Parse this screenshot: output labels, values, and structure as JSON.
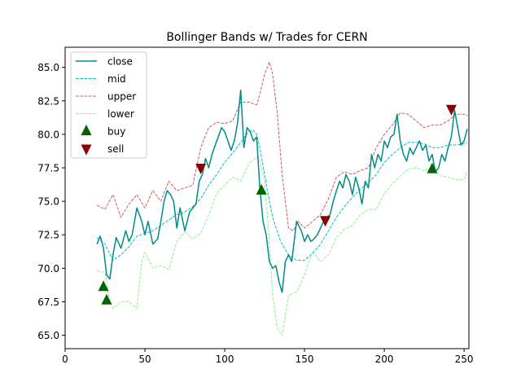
{
  "chart_data": {
    "type": "line",
    "title": "Bollinger Bands w/ Trades for CERN",
    "xlabel": "",
    "ylabel": "",
    "xlim": [
      0,
      253
    ],
    "ylim": [
      64.0,
      86.5
    ],
    "xticks": [
      0,
      50,
      100,
      150,
      200,
      250
    ],
    "yticks": [
      65.0,
      67.5,
      70.0,
      72.5,
      75.0,
      77.5,
      80.0,
      82.5,
      85.0
    ],
    "ytick_labels": [
      "65.0",
      "67.5",
      "70.0",
      "72.5",
      "75.0",
      "77.5",
      "80.0",
      "82.5",
      "85.0"
    ],
    "grid": false,
    "legend_position": "top-left",
    "series": [
      {
        "name": "close",
        "color": "#008b8b",
        "style": "solid",
        "x": [
          20,
          22,
          24,
          26,
          28,
          30,
          32,
          35,
          38,
          40,
          42,
          45,
          48,
          50,
          52,
          55,
          58,
          60,
          62,
          64,
          66,
          68,
          70,
          72,
          75,
          78,
          80,
          82,
          84,
          86,
          88,
          90,
          92,
          95,
          98,
          100,
          102,
          104,
          106,
          108,
          110,
          112,
          114,
          116,
          118,
          120,
          122,
          124,
          126,
          128,
          130,
          132,
          134,
          136,
          138,
          140,
          142,
          145,
          148,
          150,
          152,
          154,
          156,
          158,
          160,
          162,
          164,
          166,
          168,
          170,
          172,
          174,
          176,
          178,
          180,
          182,
          184,
          186,
          188,
          190,
          192,
          194,
          196,
          198,
          200,
          202,
          204,
          206,
          208,
          210,
          212,
          214,
          216,
          218,
          220,
          222,
          224,
          226,
          228,
          230,
          232,
          234,
          236,
          238,
          240,
          242,
          244,
          246,
          248,
          250,
          252
        ],
        "y": [
          71.8,
          72.4,
          71.5,
          69.5,
          69.2,
          71.0,
          72.3,
          71.5,
          72.8,
          72.0,
          72.5,
          74.5,
          73.5,
          72.5,
          73.5,
          71.8,
          72.2,
          73.5,
          75.0,
          75.8,
          75.5,
          75.0,
          73.0,
          74.5,
          72.8,
          74.2,
          74.5,
          74.8,
          76.5,
          77.0,
          78.2,
          77.5,
          78.5,
          79.5,
          80.5,
          80.2,
          79.5,
          78.8,
          79.5,
          80.8,
          83.3,
          79.0,
          80.5,
          80.2,
          79.5,
          79.8,
          76.0,
          73.5,
          72.5,
          70.5,
          70.0,
          70.2,
          69.0,
          68.2,
          70.5,
          71.0,
          70.5,
          73.5,
          72.8,
          72.0,
          72.5,
          72.0,
          72.2,
          72.5,
          73.0,
          73.5,
          73.8,
          74.0,
          75.0,
          75.8,
          76.5,
          76.0,
          77.0,
          76.5,
          75.5,
          76.8,
          76.0,
          74.8,
          76.5,
          76.0,
          78.5,
          77.5,
          78.5,
          78.0,
          79.5,
          79.0,
          79.8,
          80.0,
          81.5,
          79.5,
          78.5,
          78.0,
          79.0,
          78.5,
          79.0,
          79.5,
          78.8,
          79.2,
          78.0,
          78.5,
          77.2,
          77.5,
          78.5,
          78.0,
          79.0,
          79.8,
          81.8,
          80.5,
          79.2,
          79.5,
          80.4
        ]
      },
      {
        "name": "mid",
        "color": "#00bfbf",
        "style": "dashed",
        "x": [
          20,
          25,
          30,
          35,
          40,
          45,
          50,
          55,
          60,
          65,
          70,
          75,
          80,
          85,
          90,
          95,
          100,
          105,
          110,
          115,
          118,
          120,
          122,
          125,
          128,
          130,
          135,
          140,
          145,
          150,
          155,
          160,
          165,
          170,
          175,
          180,
          185,
          190,
          195,
          200,
          205,
          210,
          215,
          220,
          225,
          230,
          235,
          240,
          245,
          250,
          252
        ],
        "y": [
          72.3,
          71.8,
          70.6,
          71.0,
          71.6,
          72.4,
          72.6,
          72.8,
          73.2,
          73.6,
          74.0,
          74.2,
          74.6,
          75.2,
          76.2,
          77.0,
          77.9,
          78.6,
          79.4,
          80.2,
          80.3,
          80.0,
          79.0,
          77.0,
          75.0,
          73.8,
          72.0,
          71.0,
          70.6,
          70.6,
          71.1,
          71.8,
          72.8,
          73.8,
          74.6,
          75.3,
          75.9,
          76.4,
          77.0,
          77.9,
          78.5,
          79.0,
          79.4,
          79.4,
          79.3,
          79.0,
          79.0,
          79.2,
          79.2,
          79.3,
          79.4
        ]
      },
      {
        "name": "upper",
        "color": "#cd5c5c",
        "style": "dashed",
        "x": [
          20,
          25,
          30,
          35,
          40,
          45,
          50,
          55,
          60,
          65,
          70,
          75,
          80,
          85,
          90,
          95,
          100,
          105,
          110,
          115,
          120,
          122,
          125,
          128,
          130,
          133,
          136,
          140,
          143,
          146,
          150,
          155,
          160,
          165,
          170,
          175,
          180,
          185,
          190,
          195,
          200,
          205,
          210,
          215,
          220,
          225,
          230,
          235,
          240,
          245,
          250,
          252
        ],
        "y": [
          74.7,
          74.4,
          75.5,
          73.8,
          74.8,
          75.5,
          74.5,
          75.8,
          75.0,
          76.5,
          75.8,
          76.0,
          76.2,
          79.0,
          80.5,
          80.9,
          80.8,
          81.0,
          82.4,
          82.4,
          82.2,
          83.0,
          84.5,
          85.4,
          84.5,
          81.5,
          77.0,
          73.0,
          72.8,
          73.5,
          73.0,
          73.5,
          74.0,
          75.2,
          76.8,
          77.2,
          77.0,
          77.3,
          77.5,
          79.0,
          80.0,
          80.7,
          81.6,
          81.5,
          81.0,
          80.5,
          80.7,
          80.7,
          81.0,
          81.5,
          81.5,
          81.4
        ]
      },
      {
        "name": "lower",
        "color": "#90ee90",
        "style": "dashed",
        "x": [
          20,
          25,
          28,
          30,
          35,
          40,
          45,
          48,
          50,
          55,
          60,
          65,
          70,
          75,
          80,
          85,
          90,
          95,
          100,
          105,
          110,
          115,
          120,
          122,
          125,
          128,
          130,
          133,
          136,
          140,
          145,
          150,
          155,
          160,
          165,
          170,
          175,
          180,
          185,
          190,
          195,
          200,
          205,
          210,
          215,
          220,
          225,
          230,
          235,
          240,
          245,
          250,
          252
        ],
        "y": [
          69.8,
          69.7,
          67.5,
          67.0,
          67.5,
          67.5,
          67.0,
          70.5,
          71.2,
          70.0,
          70.2,
          69.9,
          72.0,
          72.7,
          72.2,
          72.6,
          74.0,
          75.6,
          76.2,
          76.8,
          76.5,
          77.8,
          78.3,
          78.0,
          76.5,
          72.0,
          68.0,
          65.5,
          65.0,
          68.0,
          68.2,
          69.5,
          71.3,
          70.5,
          71.0,
          72.3,
          72.9,
          73.2,
          74.0,
          74.4,
          74.4,
          75.6,
          76.3,
          76.9,
          77.4,
          77.5,
          77.3,
          77.5,
          76.9,
          76.8,
          76.6,
          76.6,
          77.3
        ]
      }
    ],
    "markers": [
      {
        "name": "buy",
        "color": "#006400",
        "symbol": "triangle-up",
        "x": [
          24,
          26,
          123,
          230
        ],
        "y": [
          68.6,
          67.6,
          75.8,
          77.4
        ]
      },
      {
        "name": "sell",
        "color": "#8b0000",
        "symbol": "triangle-down",
        "x": [
          85,
          163,
          242
        ],
        "y": [
          77.5,
          73.6,
          81.9
        ]
      }
    ],
    "legend": [
      "close",
      "mid",
      "upper",
      "lower",
      "buy",
      "sell"
    ]
  }
}
